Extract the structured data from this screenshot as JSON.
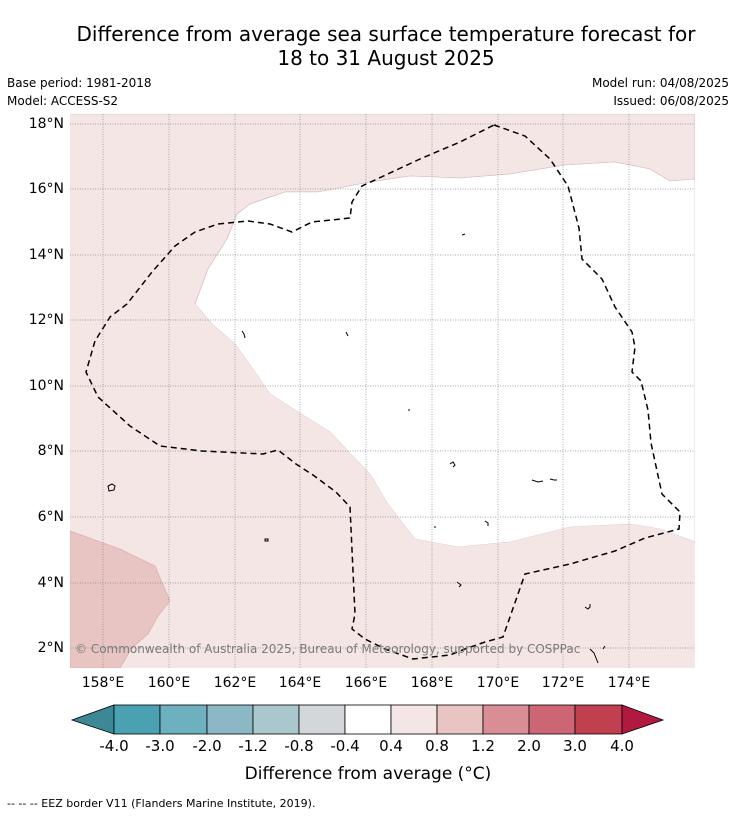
{
  "header": {
    "title_line1": "Difference from average sea surface temperature forecast for",
    "title_line2": "18 to 31 August 2025",
    "base_period": "Base period: 1981-2018",
    "model": "Model: ACCESS-S2",
    "model_run": "Model run: 04/08/2025",
    "issued": "Issued: 06/08/2025"
  },
  "map": {
    "lat_labels": [
      "18°N",
      "16°N",
      "14°N",
      "12°N",
      "10°N",
      "8°N",
      "6°N",
      "4°N",
      "2°N"
    ],
    "lon_labels": [
      "158°E",
      "160°E",
      "162°E",
      "164°E",
      "166°E",
      "168°E",
      "170°E",
      "172°E",
      "174°E"
    ],
    "copyright": "© Commonwealth of Australia 2025, Bureau of Meteorology, supported by COSPPac",
    "colors": {
      "anomaly_0_4_to_0_8": "#f4e6e5",
      "anomaly_0_8_to_1_2": "#e8c5c2",
      "neutral": "#ffffff"
    }
  },
  "colorbar": {
    "ticks": [
      "-4.0",
      "-3.0",
      "-2.0",
      "-1.2",
      "-0.8",
      "-0.4",
      "0.4",
      "0.8",
      "1.2",
      "2.0",
      "3.0",
      "4.0"
    ],
    "colors": [
      "#3d8895",
      "#4aa1b1",
      "#6db0bf",
      "#8cb8c5",
      "#a9c7cc",
      "#d2d8d9",
      "#ffffff",
      "#f4e6e5",
      "#e8c5c2",
      "#d98e96",
      "#cc6674",
      "#c0404f",
      "#b01a3f"
    ],
    "label": "Difference from average (°C)"
  },
  "footer": {
    "eez_legend": "--  --  -- EEZ border V11 (Flanders Marine Institute, 2019)."
  }
}
